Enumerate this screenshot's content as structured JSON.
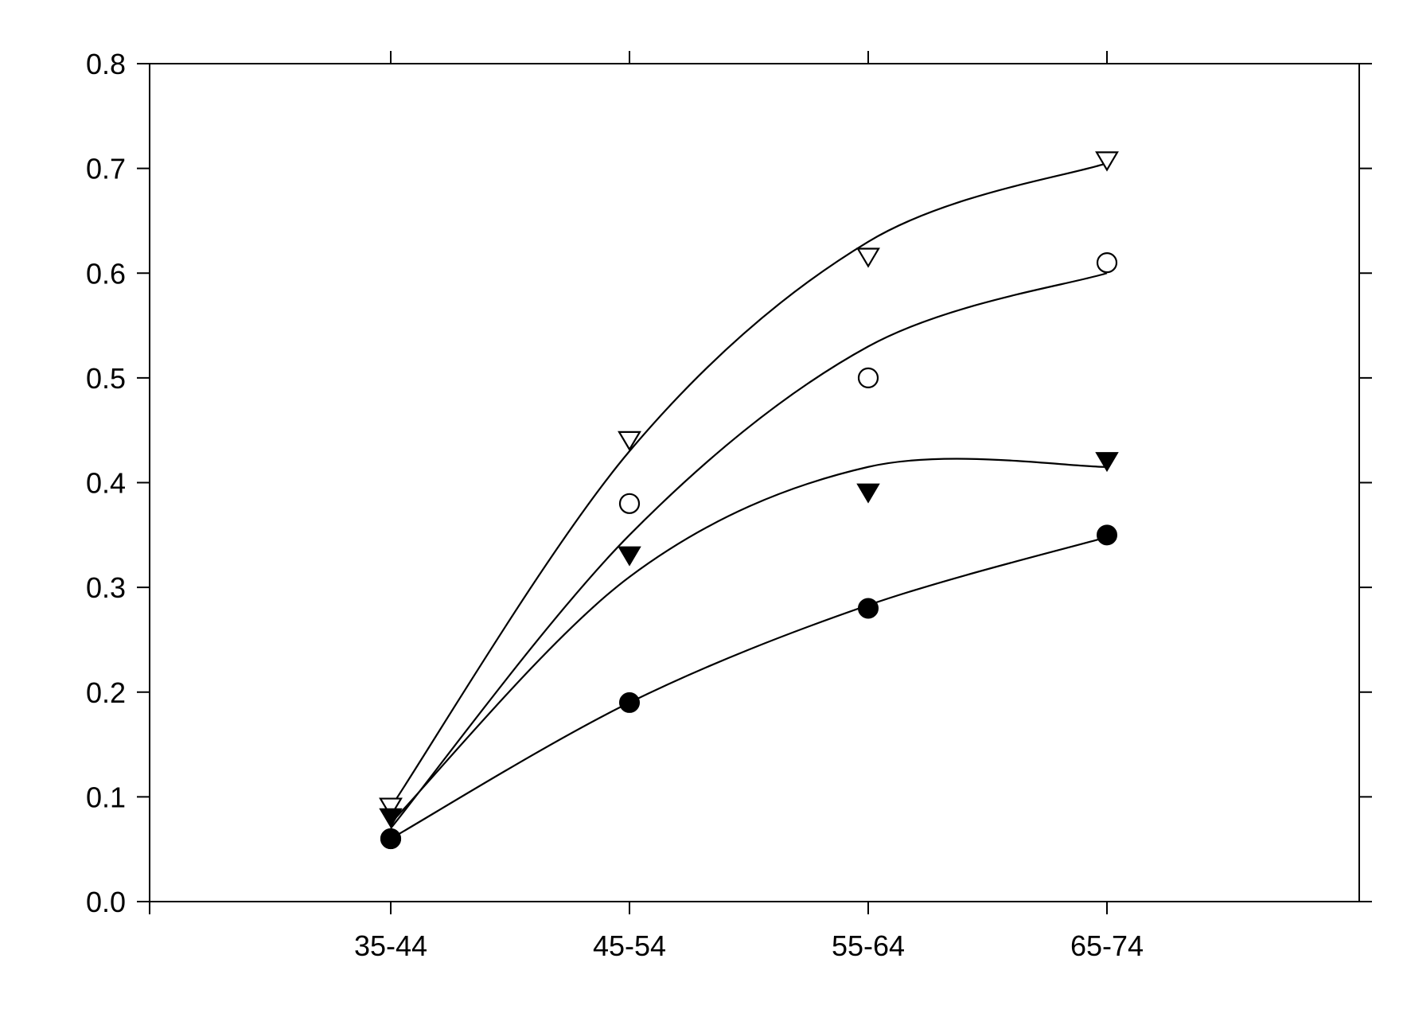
{
  "chart_data": {
    "type": "scatter",
    "title": "",
    "xlabel": "",
    "ylabel": "",
    "categories": [
      "35-44",
      "45-54",
      "55-64",
      "65-74"
    ],
    "ylim": [
      0.0,
      0.8
    ],
    "yticks": [
      "0.0",
      "0.1",
      "0.2",
      "0.3",
      "0.4",
      "0.5",
      "0.6",
      "0.7",
      "0.8"
    ],
    "grid": false,
    "legend": "none",
    "series": [
      {
        "marker": "open-triangle-down",
        "values": [
          0.09,
          0.44,
          0.615,
          0.707
        ],
        "fit": [
          0.09,
          0.43,
          0.63,
          0.705
        ]
      },
      {
        "marker": "open-circle",
        "values": [
          0.06,
          0.38,
          0.5,
          0.61
        ],
        "fit": [
          0.07,
          0.35,
          0.53,
          0.6
        ]
      },
      {
        "marker": "filled-triangle-down",
        "values": [
          0.08,
          0.33,
          0.39,
          0.42
        ],
        "fit": [
          0.075,
          0.31,
          0.415,
          0.415
        ]
      },
      {
        "marker": "filled-circle",
        "values": [
          0.06,
          0.19,
          0.28,
          0.35
        ],
        "fit": [
          0.06,
          0.19,
          0.283,
          0.348
        ]
      }
    ]
  }
}
